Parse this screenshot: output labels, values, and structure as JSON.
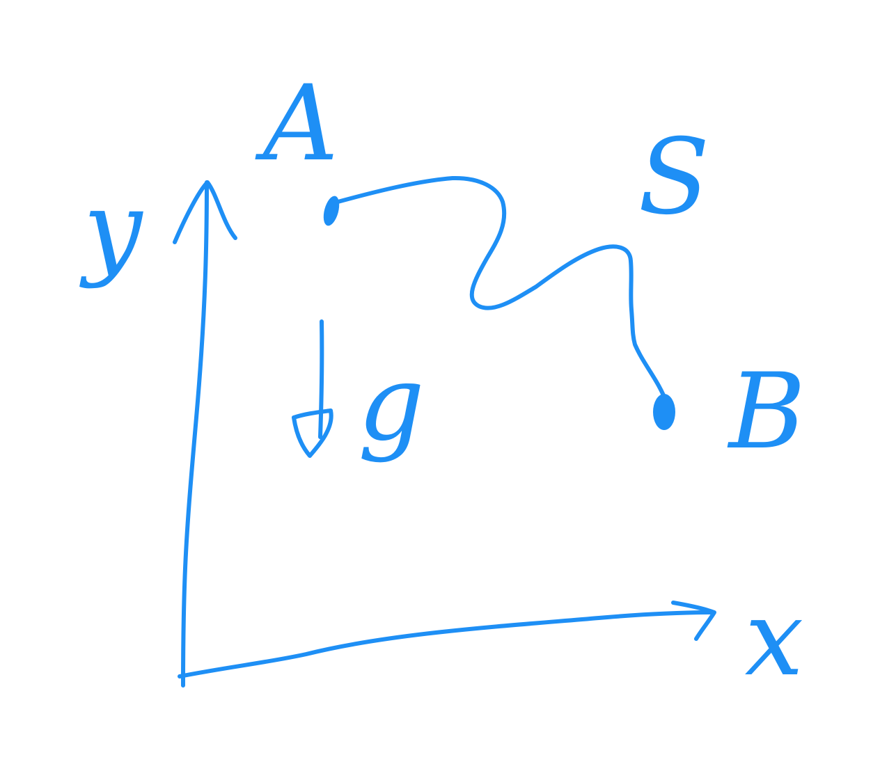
{
  "diagram": {
    "ink_color": "#1e8ff5",
    "labels": {
      "axis_y": "y",
      "axis_x": "x",
      "point_a": "A",
      "point_b": "B",
      "curve": "S",
      "gravity": "g"
    },
    "icons": {
      "gravity_arrow": "down-arrow-icon",
      "axis_arrows": "arrowhead-icon"
    }
  }
}
